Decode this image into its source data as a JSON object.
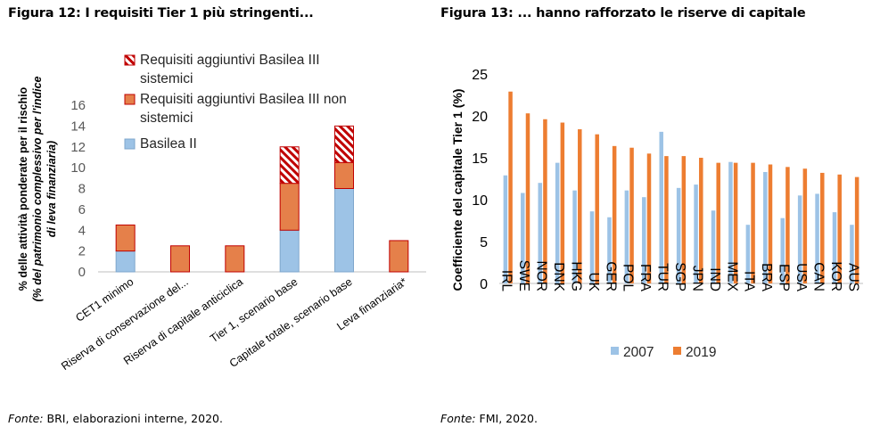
{
  "figures": [
    {
      "title": "Figura 12: I requisiti Tier 1 più stringenti...",
      "source_label": "Fonte:",
      "source_text": " BRI, elaborazioni interne, 2020."
    },
    {
      "title": "Figura 13: ... hanno rafforzato le riserve di capitale",
      "source_label": "Fonte:",
      "source_text": " FMI, 2020."
    }
  ],
  "chart_data": [
    {
      "type": "bar",
      "stacked": true,
      "title": "",
      "ylabel_lines": [
        "% delle attività ponderate per il rischio",
        "(% del patrimonio complessivo per l'indice",
        "di leva finanziaria)"
      ],
      "ylim": [
        0,
        16
      ],
      "yticks": [
        0,
        2,
        4,
        6,
        8,
        10,
        12,
        14,
        16
      ],
      "categories": [
        "CET1 minimo",
        "Riserva di conservazione del...",
        "Riserva di capitale anticiclica",
        "Tier 1, scenario base",
        "Capitale totale, scenario base",
        "Leva finanziaria*"
      ],
      "series": [
        {
          "name": "Basilea II",
          "color": "#9DC3E6",
          "values": [
            2,
            0,
            0,
            4,
            8,
            0
          ]
        },
        {
          "name": "Requisiti aggiuntivi Basilea III non sistemici",
          "color": "#E5804A",
          "values": [
            2.5,
            2.5,
            2.5,
            4.5,
            2.5,
            3
          ]
        },
        {
          "name": "Requisiti aggiuntivi Basilea III sistemici",
          "color": "#C00000",
          "pattern": "hatch",
          "values": [
            0,
            0,
            0,
            3.5,
            3.5,
            0
          ]
        }
      ],
      "legend": [
        {
          "lines": [
            "Requisiti aggiuntivi Basilea III",
            "sistemici"
          ],
          "series": 2
        },
        {
          "lines": [
            "Requisiti aggiuntivi Basilea III non",
            "sistemici"
          ],
          "series": 1
        },
        {
          "lines": [
            "Basilea II"
          ],
          "series": 0
        }
      ],
      "grid": false
    },
    {
      "type": "bar",
      "title": "",
      "ylabel": "Coefficiente del capitale Tier 1 (%)",
      "ylim": [
        0,
        25
      ],
      "yticks": [
        0,
        5,
        10,
        15,
        20,
        25
      ],
      "categories": [
        "IRL",
        "SWE",
        "NOR",
        "DNK",
        "HKG",
        "UK",
        "GER",
        "POL",
        "FRA",
        "TUR",
        "SGP",
        "JPN",
        "IND",
        "MEX",
        "ITA",
        "BRA",
        "ESP",
        "USA",
        "CAN",
        "KOR",
        "AUS"
      ],
      "series": [
        {
          "name": "2007",
          "color": "#9DC3E6",
          "values": [
            12.9,
            10.8,
            12.0,
            14.4,
            11.1,
            8.6,
            7.9,
            11.1,
            10.3,
            18.1,
            11.4,
            11.8,
            8.7,
            14.5,
            7.0,
            13.3,
            7.8,
            10.5,
            10.7,
            8.5,
            7.0
          ]
        },
        {
          "name": "2019",
          "color": "#ED7D31",
          "values": [
            22.9,
            20.3,
            19.6,
            19.2,
            18.4,
            17.8,
            16.4,
            16.2,
            15.5,
            15.2,
            15.2,
            15.0,
            14.4,
            14.4,
            14.4,
            14.2,
            13.9,
            13.7,
            13.2,
            13.0,
            12.7
          ]
        }
      ],
      "legend_position": "bottom",
      "grid": false
    }
  ]
}
